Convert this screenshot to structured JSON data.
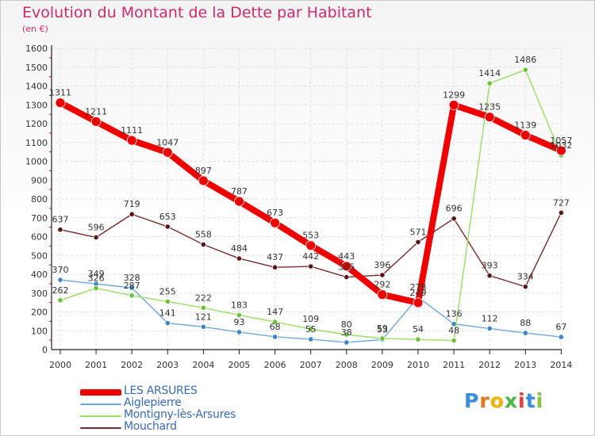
{
  "title": "Evolution du Montant de la Dette par Habitant",
  "unit_label": "(en €)",
  "logo": {
    "text": "Proxiti",
    "colors": [
      "#3b8fd6",
      "#e07a1c",
      "#f0b400",
      "#4cb848",
      "#e0403c",
      "#3b8fd6",
      "#8dc63f"
    ]
  },
  "chart_data": {
    "type": "line",
    "title": "Evolution du Montant de la Dette par Habitant",
    "ylabel": "(en €)",
    "ylim": [
      0,
      1600
    ],
    "yticks": [
      0,
      100,
      200,
      300,
      400,
      500,
      600,
      700,
      800,
      900,
      1000,
      1100,
      1200,
      1300,
      1400,
      1500,
      1600
    ],
    "x": [
      "2000",
      "2001",
      "2002",
      "2003",
      "2004",
      "2005",
      "2006",
      "2007",
      "2008",
      "2009",
      "2010",
      "2011",
      "2012",
      "2013",
      "2014"
    ],
    "grid": true,
    "legend": "bottom-left",
    "series": [
      {
        "name": "LES ARSURES",
        "color": "#ee0000",
        "values": [
          1311,
          1211,
          1111,
          1047,
          897,
          787,
          673,
          553,
          443,
          292,
          249,
          1299,
          1235,
          1139,
          1057
        ]
      },
      {
        "name": "Aiglepierre",
        "color": "#6fa8dc",
        "values": [
          370,
          349,
          328,
          141,
          121,
          93,
          68,
          55,
          38,
          53,
          278,
          136,
          112,
          88,
          67
        ]
      },
      {
        "name": "Montigny-lès-Arsures",
        "color": "#99dd66",
        "values": [
          262,
          326,
          287,
          255,
          222,
          183,
          147,
          109,
          80,
          59,
          54,
          48,
          1414,
          1486,
          1032
        ]
      },
      {
        "name": "Mouchard",
        "color": "#7a2a2a",
        "values": [
          637,
          596,
          719,
          653,
          558,
          484,
          437,
          442,
          385,
          396,
          571,
          696,
          393,
          334,
          727
        ]
      }
    ]
  }
}
